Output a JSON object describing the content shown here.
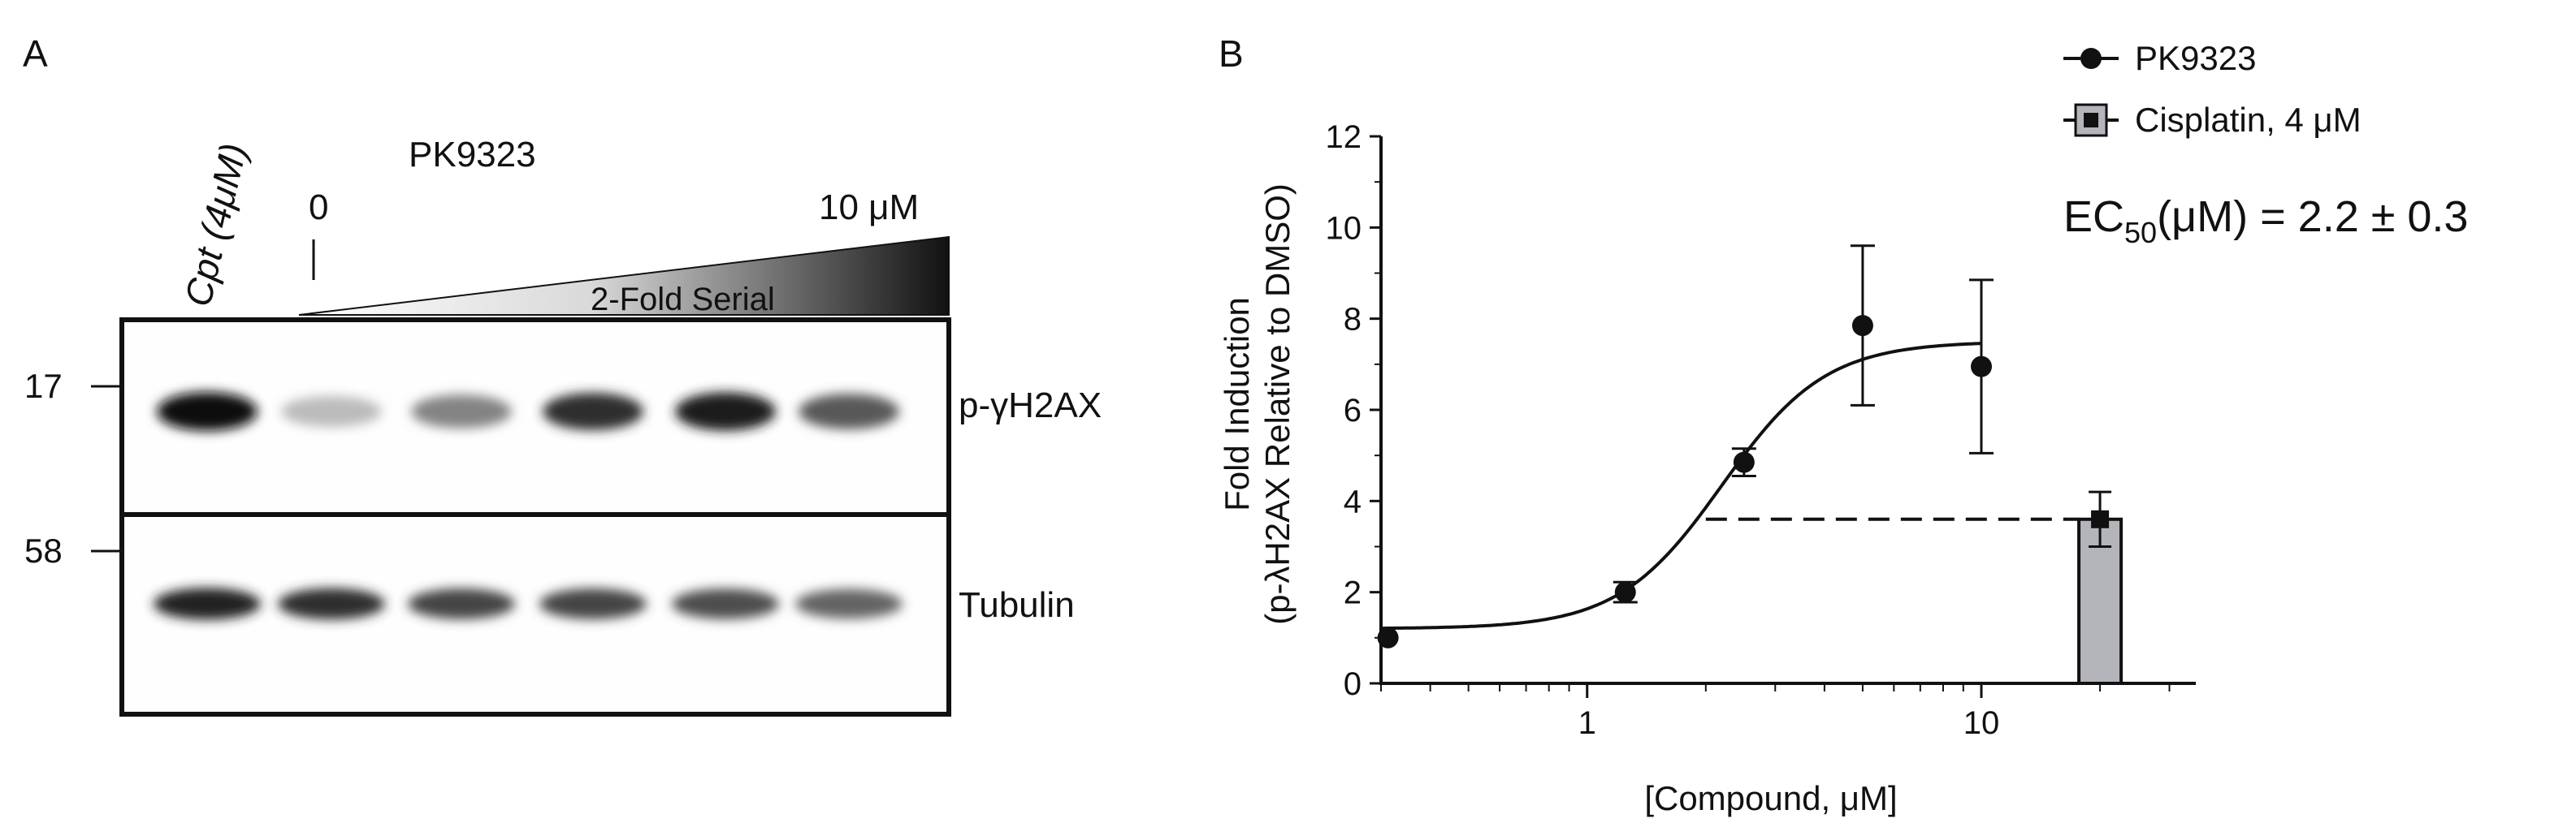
{
  "panel_a": {
    "label": "A",
    "lane1_label": "Cpt (4μM)",
    "compound": "PK9323",
    "zero_label": "0",
    "max_label": "10 μM",
    "gradient_label": "2-Fold Serial",
    "mw_17": "17",
    "mw_58": "58",
    "band1_label": "p-γH2AX",
    "band2_label": "Tubulin",
    "blot_intensity": {
      "p_gH2AX": [
        1.0,
        0.18,
        0.45,
        0.85,
        0.95,
        0.65
      ],
      "tubulin": [
        0.9,
        0.85,
        0.75,
        0.75,
        0.7,
        0.6
      ]
    }
  },
  "panel_b": {
    "label": "B",
    "ec50_main": "EC",
    "ec50_sub": "50",
    "ec50_rest": "(μM) = 2.2 ± 0.3",
    "legend": [
      {
        "name": "PK9323",
        "marker": "circle"
      },
      {
        "name": "Cisplatin, 4 μM",
        "marker": "square"
      }
    ]
  },
  "chart_data": {
    "type": "scatter",
    "xscale": "log",
    "xlim": [
      0.3,
      35
    ],
    "ylim": [
      0,
      12
    ],
    "xlabel": "[Compound, μM]",
    "ylabel_line1": "Fold Induction",
    "ylabel_line2": "(p-λH2AX Relative to DMSO)",
    "xticks": [
      {
        "value": 1,
        "label": "1"
      },
      {
        "value": 10,
        "label": "10"
      }
    ],
    "yticks": [
      {
        "value": 0,
        "label": "0"
      },
      {
        "value": 2,
        "label": "2"
      },
      {
        "value": 4,
        "label": "4"
      },
      {
        "value": 6,
        "label": "6"
      },
      {
        "value": 8,
        "label": "8"
      },
      {
        "value": 10,
        "label": "10"
      },
      {
        "value": 12,
        "label": "12"
      }
    ],
    "series": [
      {
        "name": "PK9323",
        "points": [
          {
            "x": 0.3125,
            "y": 1.0,
            "err": 0.0
          },
          {
            "x": 1.25,
            "y": 2.0,
            "err": 0.22
          },
          {
            "x": 2.5,
            "y": 4.85,
            "err": 0.3
          },
          {
            "x": 5,
            "y": 7.85,
            "err": 1.75
          },
          {
            "x": 10,
            "y": 6.95,
            "err": 1.9
          }
        ],
        "fit": {
          "bottom": 1.2,
          "top": 7.5,
          "ec50": 2.2,
          "hill": 3.3,
          "xmin": 0.3,
          "xmax": 10
        }
      },
      {
        "name": "Cisplatin, 4 μM",
        "bar": {
          "x": 20,
          "y": 3.6,
          "err": 0.6
        },
        "reference_line": {
          "y": 3.6,
          "x_start": 2.0
        }
      }
    ]
  }
}
